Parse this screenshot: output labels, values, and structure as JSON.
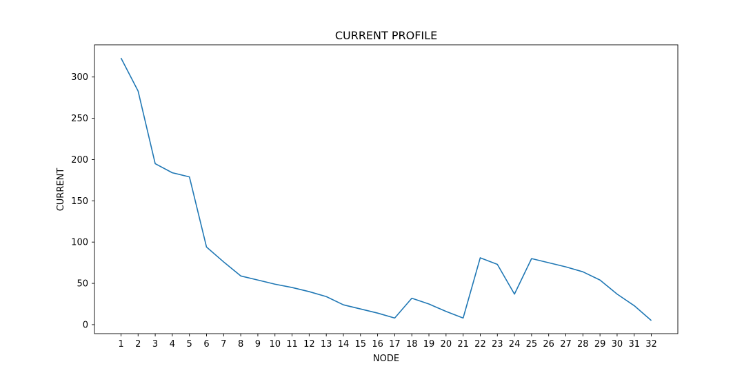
{
  "chart_data": {
    "type": "line",
    "title": "CURRENT PROFILE",
    "xlabel": "NODE",
    "ylabel": "CURRENT",
    "x": [
      1,
      2,
      3,
      4,
      5,
      6,
      7,
      8,
      9,
      10,
      11,
      12,
      13,
      14,
      15,
      16,
      17,
      18,
      19,
      20,
      21,
      22,
      23,
      24,
      25,
      26,
      27,
      28,
      29,
      30,
      31,
      32
    ],
    "series": [
      {
        "values": [
          323,
          283,
          195,
          184,
          179,
          94,
          76,
          59,
          54,
          49,
          45,
          40,
          34,
          24,
          19,
          14,
          8,
          32,
          25,
          16,
          8,
          81,
          73,
          37,
          80,
          75,
          70,
          64,
          54,
          37,
          23,
          5
        ],
        "color": "#1f77b4"
      }
    ],
    "xlim": [
      -0.55,
      33.55
    ],
    "ylim": [
      -10.9,
      339.0
    ],
    "yticks": [
      0,
      50,
      100,
      150,
      200,
      250,
      300
    ],
    "xticks": [
      "1",
      "2",
      "3",
      "4",
      "5",
      "6",
      "7",
      "8",
      "9",
      "10",
      "11",
      "12",
      "13",
      "14",
      "15",
      "16",
      "17",
      "18",
      "19",
      "20",
      "21",
      "22",
      "23",
      "24",
      "25",
      "26",
      "27",
      "28",
      "29",
      "30",
      "31",
      "32"
    ],
    "grid": false,
    "legend": false
  }
}
